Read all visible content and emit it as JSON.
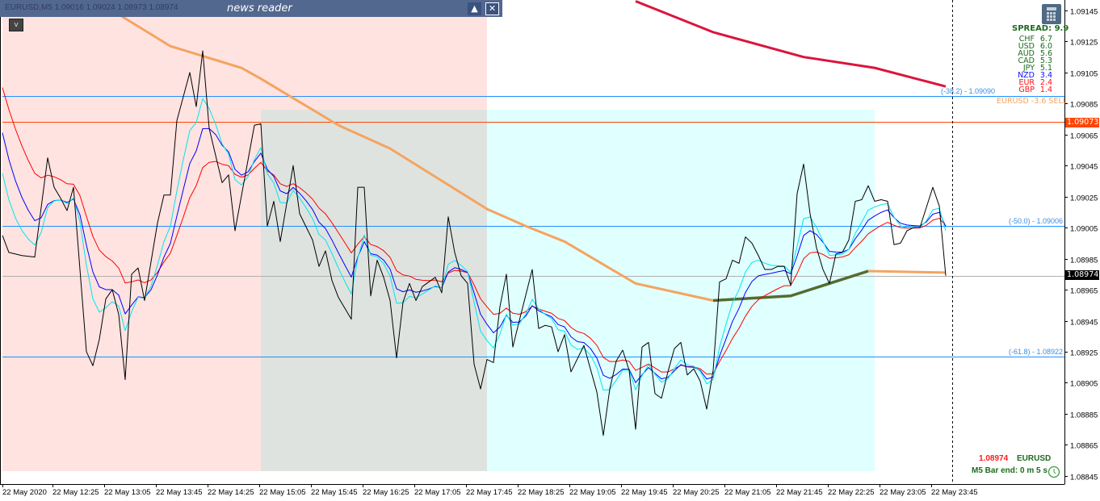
{
  "window": {
    "symbol_info": "EURUSD,M5  1.09016 1.09024 1.08973 1.08974",
    "news_panel_title": "news reader",
    "collapse_icon": "triangle-up-icon",
    "close_icon": "close-box-icon",
    "v_button_label": "v"
  },
  "spread_panel": {
    "spread_label": "SPREAD: 9.9",
    "currencies": [
      {
        "name": "CHF",
        "value": "6.7",
        "color": "#1c6b1c"
      },
      {
        "name": "USD",
        "value": "6.0",
        "color": "#1c6b1c"
      },
      {
        "name": "AUD",
        "value": "5.6",
        "color": "#1c6b1c"
      },
      {
        "name": "CAD",
        "value": "5.3",
        "color": "#1c6b1c"
      },
      {
        "name": "JPY",
        "value": "5.1",
        "color": "#1c6b1c"
      },
      {
        "name": "NZD",
        "value": "3.4",
        "color": "#1010ff"
      },
      {
        "name": "EUR",
        "value": "2.4",
        "color": "#ff1010"
      },
      {
        "name": "GBP",
        "value": "1.4",
        "color": "#ff1010"
      }
    ],
    "signal": "EURUSD -3.6 SELL"
  },
  "fib_labels": [
    {
      "text": "(-38.2) -  1.09090",
      "price": 1.0909
    },
    {
      "text": "(-50.0) -  1.09006",
      "price": 1.09006
    },
    {
      "text": "(-61.8) -  1.08922",
      "price": 1.08922
    }
  ],
  "price_tags": {
    "resistance": "1.09073",
    "current": "1.08974"
  },
  "bottom_info": {
    "price": "1.08974",
    "symbol": "EURUSD",
    "bar_end": "M5 Bar end: 0 m 5 s",
    "clock_icon": "clock-icon"
  },
  "chart_data": {
    "type": "line",
    "grid": false,
    "ylim": [
      1.08835,
      1.09152
    ],
    "y_ticks": [
      "1.09145",
      "1.09125",
      "1.09105",
      "1.09085",
      "1.09065",
      "1.09045",
      "1.09025",
      "1.09005",
      "1.08985",
      "1.08965",
      "1.08945",
      "1.08925",
      "1.08905",
      "1.08885",
      "1.08865",
      "1.08845"
    ],
    "x_ticks": [
      "22 May 2020",
      "22 May 12:25",
      "22 May 13:05",
      "22 May 13:45",
      "22 May 14:25",
      "22 May 15:05",
      "22 May 15:45",
      "22 May 16:25",
      "22 May 17:05",
      "22 May 17:45",
      "22 May 18:25",
      "22 May 19:05",
      "22 May 19:45",
      "22 May 20:25",
      "22 May 21:05",
      "22 May 21:45",
      "22 May 22:25",
      "22 May 23:05",
      "22 May 23:45"
    ],
    "x_start": "11:45",
    "bar_minutes": 5,
    "close": [
      [
        "11:45",
        1.09
      ],
      [
        "11:50",
        1.08989
      ],
      [
        "12:00",
        1.08987
      ],
      [
        "12:10",
        1.08986
      ],
      [
        "12:20",
        1.0905
      ],
      [
        "12:25",
        1.09031
      ],
      [
        "12:30",
        1.09024
      ],
      [
        "12:35",
        1.09016
      ],
      [
        "12:40",
        1.09031
      ],
      [
        "12:50",
        1.08925
      ],
      [
        "12:55",
        1.08916
      ],
      [
        "13:00",
        1.08933
      ],
      [
        "13:05",
        1.08959
      ],
      [
        "13:10",
        1.08965
      ],
      [
        "13:15",
        1.08949
      ],
      [
        "13:20",
        1.08907
      ],
      [
        "13:25",
        1.08975
      ],
      [
        "13:30",
        1.08979
      ],
      [
        "13:35",
        1.08958
      ],
      [
        "13:45",
        1.09008
      ],
      [
        "13:50",
        1.09026
      ],
      [
        "13:55",
        1.09026
      ],
      [
        "14:00",
        1.09074
      ],
      [
        "14:10",
        1.09105
      ],
      [
        "14:15",
        1.09083
      ],
      [
        "14:20",
        1.09119
      ],
      [
        "14:25",
        1.09069
      ],
      [
        "14:35",
        1.09034
      ],
      [
        "14:40",
        1.09039
      ],
      [
        "14:45",
        1.09003
      ],
      [
        "15:00",
        1.09071
      ],
      [
        "15:05",
        1.09072
      ],
      [
        "15:10",
        1.09006
      ],
      [
        "15:15",
        1.09022
      ],
      [
        "15:20",
        1.08996
      ],
      [
        "15:30",
        1.09045
      ],
      [
        "15:35",
        1.09014
      ],
      [
        "15:45",
        1.08997
      ],
      [
        "15:50",
        1.0898
      ],
      [
        "15:55",
        1.0899
      ],
      [
        "16:00",
        1.08971
      ],
      [
        "16:05",
        1.0896
      ],
      [
        "16:15",
        1.08946
      ],
      [
        "16:20",
        1.09031
      ],
      [
        "16:25",
        1.09031
      ],
      [
        "16:30",
        1.08961
      ],
      [
        "16:35",
        1.08984
      ],
      [
        "16:40",
        1.08973
      ],
      [
        "16:45",
        1.08958
      ],
      [
        "16:50",
        1.08921
      ],
      [
        "16:55",
        1.08957
      ],
      [
        "17:00",
        1.08969
      ],
      [
        "17:05",
        1.08958
      ],
      [
        "17:10",
        1.08967
      ],
      [
        "17:20",
        1.08973
      ],
      [
        "17:25",
        1.08963
      ],
      [
        "17:30",
        1.09012
      ],
      [
        "17:35",
        1.08989
      ],
      [
        "17:40",
        1.08974
      ],
      [
        "17:45",
        1.08969
      ],
      [
        "17:50",
        1.08917
      ],
      [
        "17:55",
        1.08901
      ],
      [
        "18:00",
        1.0892
      ],
      [
        "18:05",
        1.08918
      ],
      [
        "18:10",
        1.08954
      ],
      [
        "18:15",
        1.08975
      ],
      [
        "18:20",
        1.08928
      ],
      [
        "18:25",
        1.08945
      ],
      [
        "18:35",
        1.08978
      ],
      [
        "18:40",
        1.0894
      ],
      [
        "18:45",
        1.08942
      ],
      [
        "18:50",
        1.08941
      ],
      [
        "18:55",
        1.08925
      ],
      [
        "19:00",
        1.08936
      ],
      [
        "19:05",
        1.08912
      ],
      [
        "19:15",
        1.08929
      ],
      [
        "19:25",
        1.08899
      ],
      [
        "19:30",
        1.08871
      ],
      [
        "19:35",
        1.08901
      ],
      [
        "19:40",
        1.08919
      ],
      [
        "19:45",
        1.08926
      ],
      [
        "19:50",
        1.08913
      ],
      [
        "19:55",
        1.08875
      ],
      [
        "20:00",
        1.08928
      ],
      [
        "20:05",
        1.08931
      ],
      [
        "20:10",
        1.08898
      ],
      [
        "20:15",
        1.08895
      ],
      [
        "20:20",
        1.08912
      ],
      [
        "20:25",
        1.08927
      ],
      [
        "20:30",
        1.08931
      ],
      [
        "20:35",
        1.0891
      ],
      [
        "20:40",
        1.08914
      ],
      [
        "20:45",
        1.08906
      ],
      [
        "20:50",
        1.08888
      ],
      [
        "20:55",
        1.08913
      ],
      [
        "21:00",
        1.0897
      ],
      [
        "21:05",
        1.08972
      ],
      [
        "21:10",
        1.08984
      ],
      [
        "21:15",
        1.08982
      ],
      [
        "21:20",
        1.08999
      ],
      [
        "21:25",
        1.08995
      ],
      [
        "21:30",
        1.08987
      ],
      [
        "21:35",
        1.08978
      ],
      [
        "21:40",
        1.08978
      ],
      [
        "21:45",
        1.0898
      ],
      [
        "21:50",
        1.0898
      ],
      [
        "21:55",
        1.08968
      ],
      [
        "22:00",
        1.09027
      ],
      [
        "22:05",
        1.09046
      ],
      [
        "22:10",
        1.09014
      ],
      [
        "22:15",
        1.08992
      ],
      [
        "22:20",
        1.08978
      ],
      [
        "22:25",
        1.08969
      ],
      [
        "22:30",
        1.08988
      ],
      [
        "22:35",
        1.08989
      ],
      [
        "22:40",
        1.08997
      ],
      [
        "22:45",
        1.09022
      ],
      [
        "22:50",
        1.09023
      ],
      [
        "22:55",
        1.09032
      ],
      [
        "23:00",
        1.09022
      ],
      [
        "23:05",
        1.09023
      ],
      [
        "23:10",
        1.09022
      ],
      [
        "23:15",
        1.08994
      ],
      [
        "23:20",
        1.08995
      ],
      [
        "23:25",
        1.09003
      ],
      [
        "23:30",
        1.09005
      ],
      [
        "23:35",
        1.09005
      ],
      [
        "23:45",
        1.09031
      ],
      [
        "23:50",
        1.09019
      ],
      [
        "23:55",
        1.08974
      ]
    ],
    "long_ma": [
      [
        "13:10",
        1.09145
      ],
      [
        "13:55",
        1.09122
      ],
      [
        "14:50",
        1.09108
      ],
      [
        "15:05",
        1.09101
      ],
      [
        "16:05",
        1.09071
      ],
      [
        "16:45",
        1.09056
      ],
      [
        "18:00",
        1.09017
      ],
      [
        "18:30",
        1.09006
      ],
      [
        "19:00",
        1.08996
      ],
      [
        "19:55",
        1.08969
      ],
      [
        "20:55",
        1.08958
      ]
    ],
    "trend_segment": [
      [
        "20:55",
        1.08958
      ],
      [
        "21:55",
        1.08961
      ],
      [
        "22:55",
        1.08977
      ]
    ],
    "flat_segment": [
      [
        "22:55",
        1.08977
      ],
      [
        "23:55",
        1.08976
      ]
    ],
    "higher_tf_ma": [
      [
        "19:55",
        1.09151
      ],
      [
        "20:55",
        1.09131
      ],
      [
        "22:05",
        1.09115
      ],
      [
        "23:00",
        1.09108
      ],
      [
        "23:55",
        1.09096
      ]
    ],
    "horizontal_levels": [
      {
        "price": 1.0909,
        "color": "#1e90ff"
      },
      {
        "price": 1.09073,
        "color": "#ff4500"
      },
      {
        "price": 1.09006,
        "color": "#1e90ff"
      },
      {
        "price": 1.08974,
        "color": "#b0b0b0"
      },
      {
        "price": 1.08922,
        "color": "#1e90ff"
      }
    ],
    "zones": [
      {
        "from": "11:45",
        "to": "18:00",
        "top": 1.09152,
        "bottom": 1.08848,
        "color": "#ffe3e1"
      },
      {
        "from": "15:05",
        "to": "18:00",
        "top": 1.09081,
        "bottom": 1.08848,
        "color": "#dfe3e0"
      },
      {
        "from": "18:00",
        "to": "23:00",
        "top": 1.09081,
        "bottom": 1.08848,
        "color": "#e0ffff"
      }
    ],
    "colors": {
      "close": "#000000",
      "ma_fast": "#00e5ee",
      "ma_mid": "#0000ff",
      "ma_slow": "#ff0000",
      "long_ma": "#f4a460",
      "trend": "#556b2f",
      "higher_tf_ma": "#dc143c"
    }
  }
}
